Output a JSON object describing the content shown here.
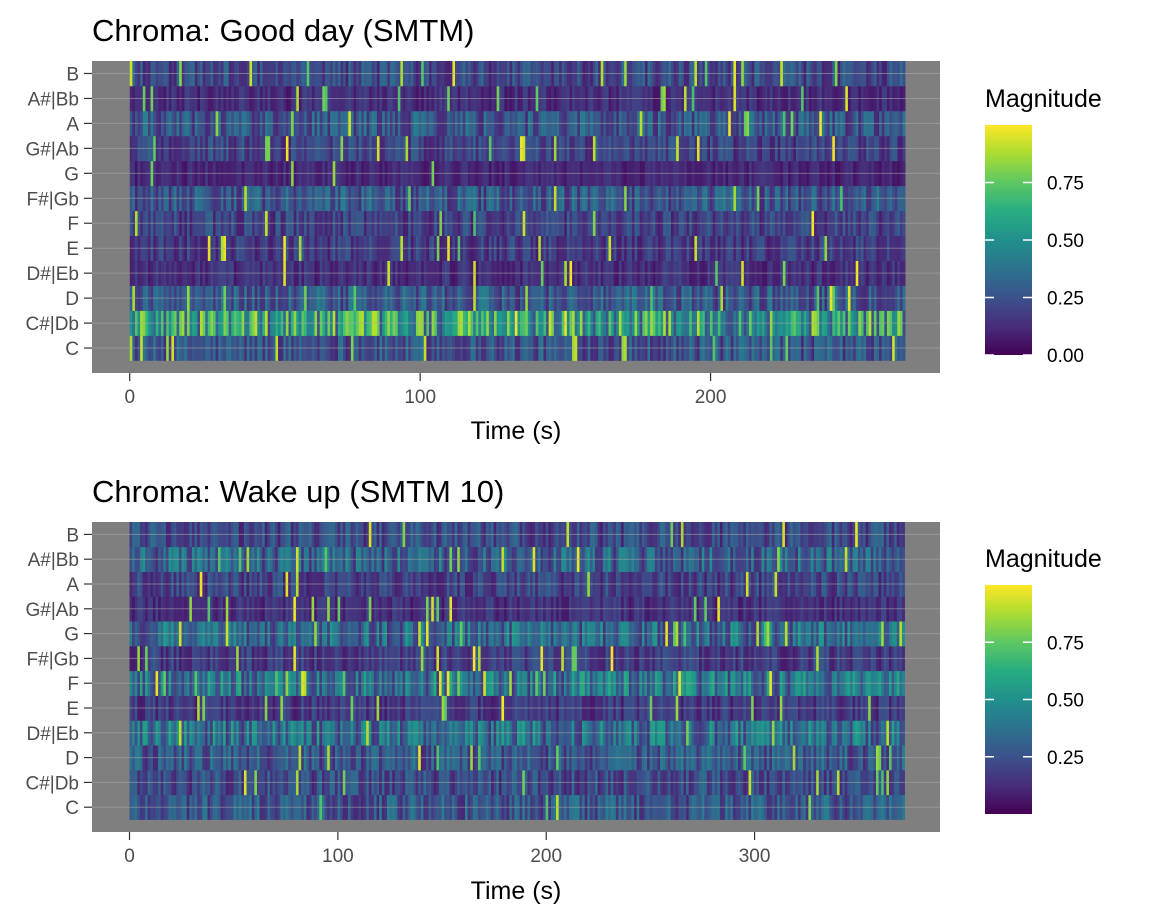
{
  "chart_data": [
    {
      "type": "heatmap",
      "title": "Chroma: Good day (SMTM)",
      "xlabel": "Time (s)",
      "ylabel": "",
      "xlim": [
        -13,
        279
      ],
      "x_ticks": [
        0,
        100,
        200
      ],
      "x_tick_labels": [
        "0",
        "100",
        "200"
      ],
      "data_x_range": [
        0,
        267
      ],
      "pitch_classes": [
        "C",
        "C#|Db",
        "D",
        "D#|Eb",
        "E",
        "F",
        "F#|Gb",
        "G",
        "G#|Ab",
        "A",
        "A#|Bb",
        "B"
      ],
      "row_means": [
        0.28,
        0.62,
        0.3,
        0.15,
        0.2,
        0.22,
        0.3,
        0.12,
        0.22,
        0.3,
        0.14,
        0.25
      ],
      "color_scale": "viridis",
      "legend": {
        "title": "Magnitude",
        "ticks": [
          0.0,
          0.25,
          0.5,
          0.75
        ],
        "tick_labels": [
          "0.00",
          "0.25",
          "0.50",
          "0.75"
        ],
        "range": [
          0,
          1
        ],
        "placement": "right"
      },
      "panel_background": "#7f7f7f",
      "grid": true
    },
    {
      "type": "heatmap",
      "title": "Chroma: Wake up (SMTM 10)",
      "xlabel": "Time (s)",
      "ylabel": "",
      "xlim": [
        -18,
        389
      ],
      "x_ticks": [
        0,
        100,
        200,
        300
      ],
      "x_tick_labels": [
        "0",
        "100",
        "200",
        "300"
      ],
      "data_x_range": [
        0,
        372
      ],
      "pitch_classes": [
        "C",
        "C#|Db",
        "D",
        "D#|Eb",
        "E",
        "F",
        "F#|Gb",
        "G",
        "G#|Ab",
        "A",
        "A#|Bb",
        "B"
      ],
      "row_means": [
        0.3,
        0.25,
        0.3,
        0.4,
        0.18,
        0.42,
        0.2,
        0.38,
        0.15,
        0.22,
        0.35,
        0.25
      ],
      "color_scale": "viridis",
      "legend": {
        "title": "Magnitude",
        "ticks": [
          0.25,
          0.5,
          0.75
        ],
        "tick_labels": [
          "0.25",
          "0.50",
          "0.75"
        ],
        "range": [
          0.0,
          1
        ],
        "placement": "right"
      },
      "panel_background": "#7f7f7f",
      "grid": true
    }
  ]
}
